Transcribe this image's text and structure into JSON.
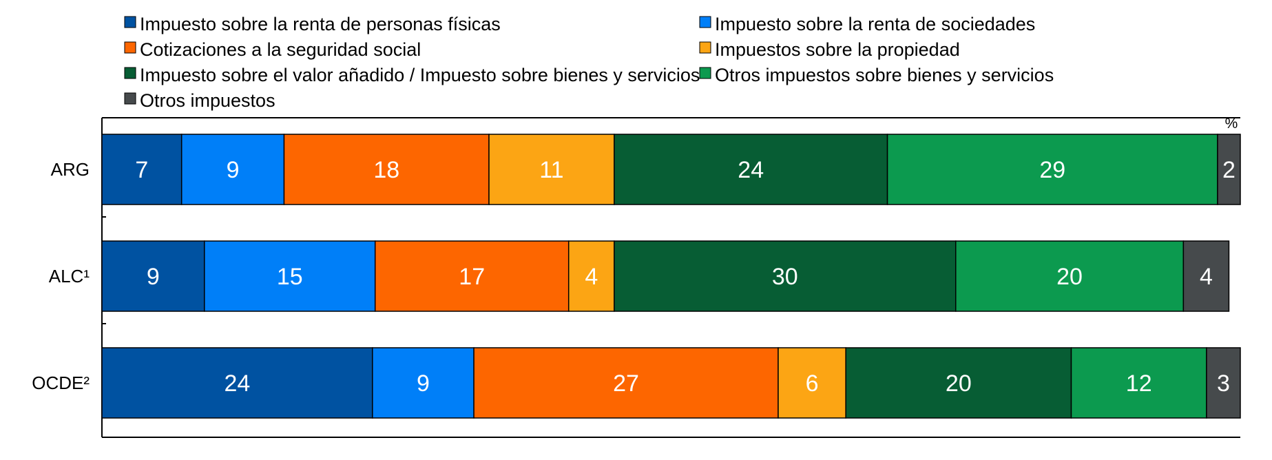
{
  "chart_data": {
    "type": "bar",
    "orientation": "horizontal",
    "stacked": true,
    "unit": "%",
    "categories": [
      "ARG",
      "ALC¹",
      "OCDE²"
    ],
    "series": [
      {
        "name": "Impuesto sobre la renta de personas físicas",
        "color": "#0052a1",
        "values": [
          7,
          9,
          24
        ]
      },
      {
        "name": "Impuesto sobre la renta de sociedades",
        "color": "#007ff8",
        "values": [
          9,
          15,
          9
        ]
      },
      {
        "name": "Cotizaciones a la seguridad social",
        "color": "#fd6600",
        "values": [
          18,
          17,
          27
        ]
      },
      {
        "name": "Impuestos sobre la propiedad",
        "color": "#fca514",
        "values": [
          11,
          4,
          6
        ]
      },
      {
        "name": "Impuesto sobre el valor añadido / Impuesto sobre bienes y servicios",
        "color": "#075d34",
        "values": [
          24,
          30,
          20
        ]
      },
      {
        "name": "Otros impuestos sobre bienes y servicios",
        "color": "#0c9a4f",
        "values": [
          29,
          20,
          12
        ]
      },
      {
        "name": "Otros impuestos",
        "color": "#464a4c",
        "values": [
          2,
          4,
          3
        ]
      }
    ],
    "xlim": [
      0,
      100
    ],
    "legend_position": "top",
    "grid": false
  }
}
